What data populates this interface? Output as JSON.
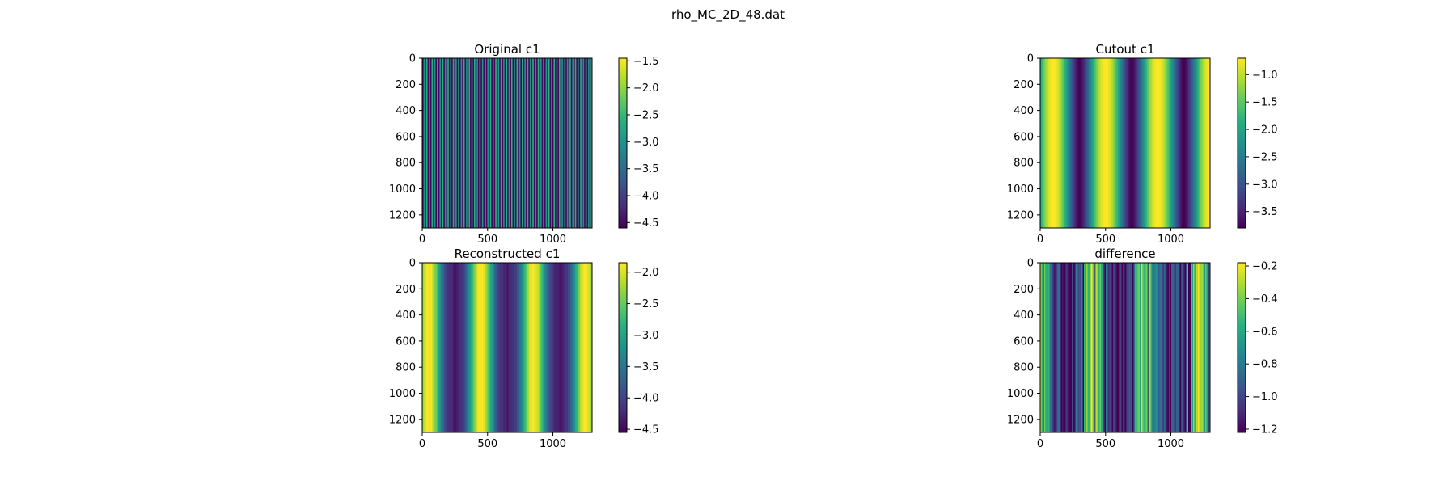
{
  "figure": {
    "suptitle": "rho_MC_2D_48.dat"
  },
  "chart_data": [
    {
      "type": "heatmap",
      "title": "Original c1",
      "pattern": "fine-vertical-stripes",
      "stripe_count": 64,
      "xlim": [
        0,
        1300
      ],
      "ylim": [
        1300,
        0
      ],
      "xticks": [
        0,
        500,
        1000
      ],
      "yticks": [
        0,
        200,
        400,
        600,
        800,
        1000,
        1200
      ],
      "colorbar": {
        "min": -4.6,
        "max": -1.45,
        "ticks": [
          -1.5,
          -2.0,
          -2.5,
          -3.0,
          -3.5,
          -4.0,
          -4.5
        ]
      },
      "colormap": "viridis"
    },
    {
      "type": "heatmap",
      "title": "Cutout c1",
      "pattern": "smooth-vertical-bands",
      "period": 400,
      "phase_peak_x": 100,
      "xlim": [
        0,
        1300
      ],
      "ylim": [
        1300,
        0
      ],
      "xticks": [
        0,
        500,
        1000
      ],
      "yticks": [
        0,
        200,
        400,
        600,
        800,
        1000,
        1200
      ],
      "colorbar": {
        "min": -3.8,
        "max": -0.7,
        "ticks": [
          -1.0,
          -1.5,
          -2.0,
          -2.5,
          -3.0,
          -3.5
        ]
      },
      "colormap": "viridis"
    },
    {
      "type": "heatmap",
      "title": "Reconstructed c1",
      "pattern": "noisy-vertical-bands",
      "period": 400,
      "phase_peak_x": 0,
      "xlim": [
        0,
        1300
      ],
      "ylim": [
        1300,
        0
      ],
      "xticks": [
        0,
        500,
        1000
      ],
      "yticks": [
        0,
        200,
        400,
        600,
        800,
        1000,
        1200
      ],
      "colorbar": {
        "min": -4.55,
        "max": -1.85,
        "ticks": [
          -2.0,
          -2.5,
          -3.0,
          -3.5,
          -4.0,
          -4.5
        ]
      },
      "colormap": "viridis"
    },
    {
      "type": "heatmap",
      "title": "difference",
      "pattern": "noisy-narrow-stripes",
      "xlim": [
        0,
        1300
      ],
      "ylim": [
        1300,
        0
      ],
      "xticks": [
        0,
        500,
        1000
      ],
      "yticks": [
        0,
        200,
        400,
        600,
        800,
        1000,
        1200
      ],
      "colorbar": {
        "min": -1.22,
        "max": -0.18,
        "ticks": [
          -0.2,
          -0.4,
          -0.6,
          -0.8,
          -1.0,
          -1.2
        ]
      },
      "colormap": "viridis"
    }
  ]
}
